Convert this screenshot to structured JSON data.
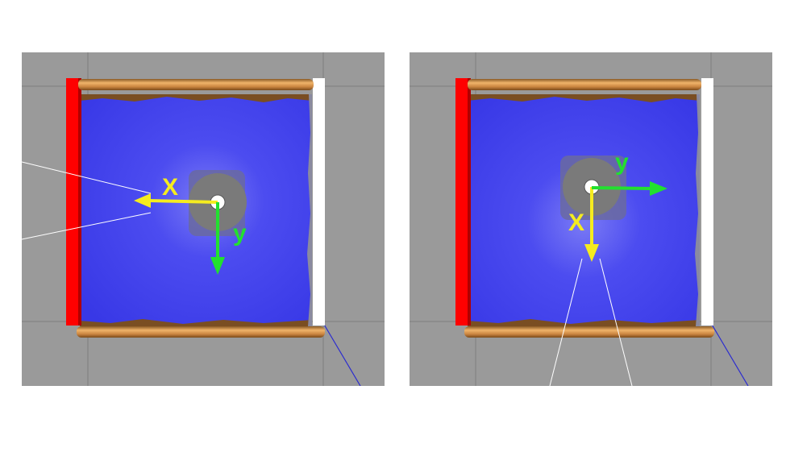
{
  "colors": {
    "floor": "#9a9a9a",
    "grid": "#7e7e7e",
    "scan": "#4a4af2",
    "red_wall": "#ff0000",
    "white_wall": "#ffffff",
    "wood_wall": "#c98a45",
    "robot_base": "#6a6aa0",
    "robot_disk": "#7a7a7a",
    "x_axis": "#f5ec1f",
    "y_axis": "#22e02f",
    "laser_beam": "#ffffff",
    "blue_line": "#2a2ad0"
  },
  "panels": [
    {
      "id": "left",
      "x_label": "X",
      "y_label": "y",
      "x_axis_direction": "left",
      "y_axis_direction": "down",
      "laser_direction": "left"
    },
    {
      "id": "right",
      "x_label": "X",
      "y_label": "y",
      "x_axis_direction": "down",
      "y_axis_direction": "right",
      "laser_direction": "down"
    }
  ]
}
